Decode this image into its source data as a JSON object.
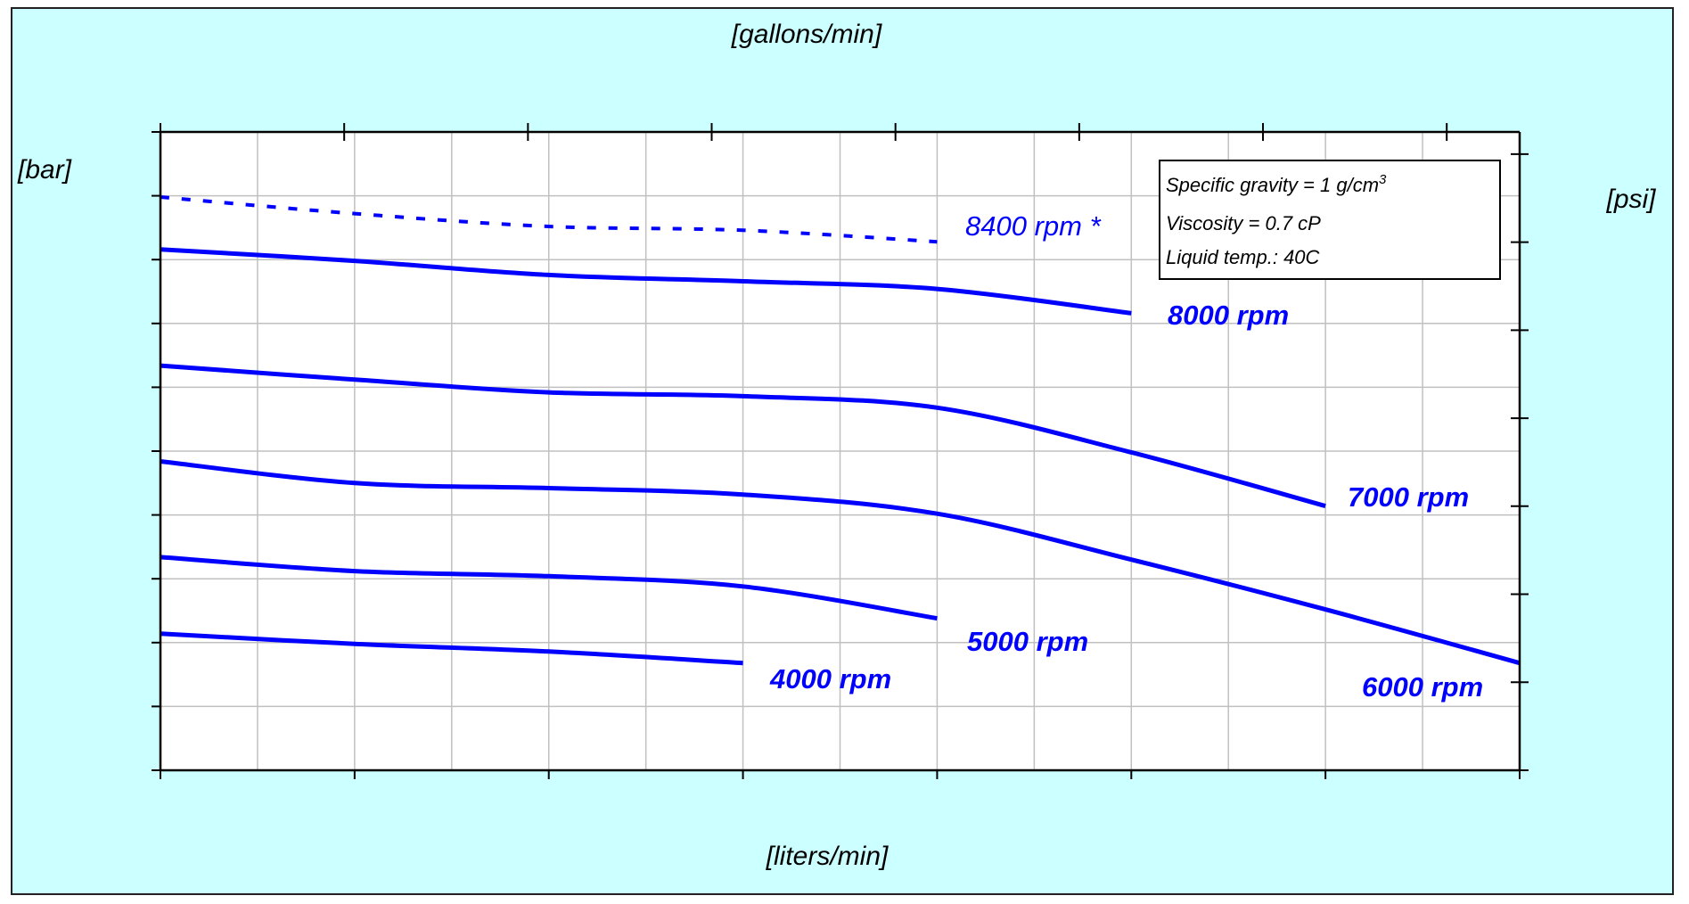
{
  "chart_data": {
    "type": "line",
    "xlabel_bottom": "[liters/min]",
    "xlabel_top": "[gallons/min]",
    "ylabel_left": "[bar]",
    "ylabel_right": "[psi]",
    "x_bottom_ticks": [
      "0",
      "20",
      "40",
      "60",
      "80",
      "100",
      "120",
      "140"
    ],
    "x_top_ticks": [
      "0",
      "5",
      "10",
      "15",
      "20",
      "25",
      "30",
      "35"
    ],
    "y_left_ticks": [
      "0.0",
      "0.5",
      "1.0",
      "1.5",
      "2.0",
      "2.5",
      "3.0",
      "3.5",
      "4.0",
      "4.5",
      "5.0"
    ],
    "y_right_ticks": [
      "0",
      "10",
      "20",
      "30",
      "40",
      "50",
      "60",
      "70"
    ],
    "xlim": [
      0,
      140
    ],
    "ylim": [
      0,
      5
    ],
    "grid": true,
    "notes": [
      "Specific gravity = 1 g/cm",
      "3",
      "Viscosity = 0.7 cP",
      "Liquid temp.: 40C"
    ],
    "series": [
      {
        "name": "8400 rpm *",
        "style": "dashed",
        "color": "#0000ff",
        "x": [
          0,
          20,
          40,
          60,
          80
        ],
        "y": [
          4.49,
          4.36,
          4.26,
          4.23,
          4.14
        ]
      },
      {
        "name": "8000 rpm",
        "style": "solid",
        "color": "#0000ff",
        "x": [
          0,
          20,
          40,
          60,
          80,
          100
        ],
        "y": [
          4.08,
          3.99,
          3.88,
          3.83,
          3.77,
          3.58
        ]
      },
      {
        "name": "7000 rpm",
        "style": "solid",
        "color": "#0000ff",
        "x": [
          0,
          20,
          40,
          60,
          80,
          100,
          120
        ],
        "y": [
          3.17,
          3.06,
          2.96,
          2.93,
          2.84,
          2.49,
          2.07
        ]
      },
      {
        "name": "6000 rpm",
        "style": "solid",
        "color": "#0000ff",
        "x": [
          0,
          20,
          40,
          60,
          80,
          100,
          120,
          140
        ],
        "y": [
          2.42,
          2.25,
          2.21,
          2.16,
          2.01,
          1.65,
          1.26,
          0.84
        ]
      },
      {
        "name": "5000 rpm",
        "style": "solid",
        "color": "#0000ff",
        "x": [
          0,
          20,
          40,
          60,
          80
        ],
        "y": [
          1.67,
          1.56,
          1.52,
          1.44,
          1.19
        ]
      },
      {
        "name": "4000 rpm",
        "style": "solid",
        "color": "#0000ff",
        "x": [
          0,
          20,
          40,
          60
        ],
        "y": [
          1.07,
          0.99,
          0.93,
          0.84
        ]
      }
    ]
  }
}
